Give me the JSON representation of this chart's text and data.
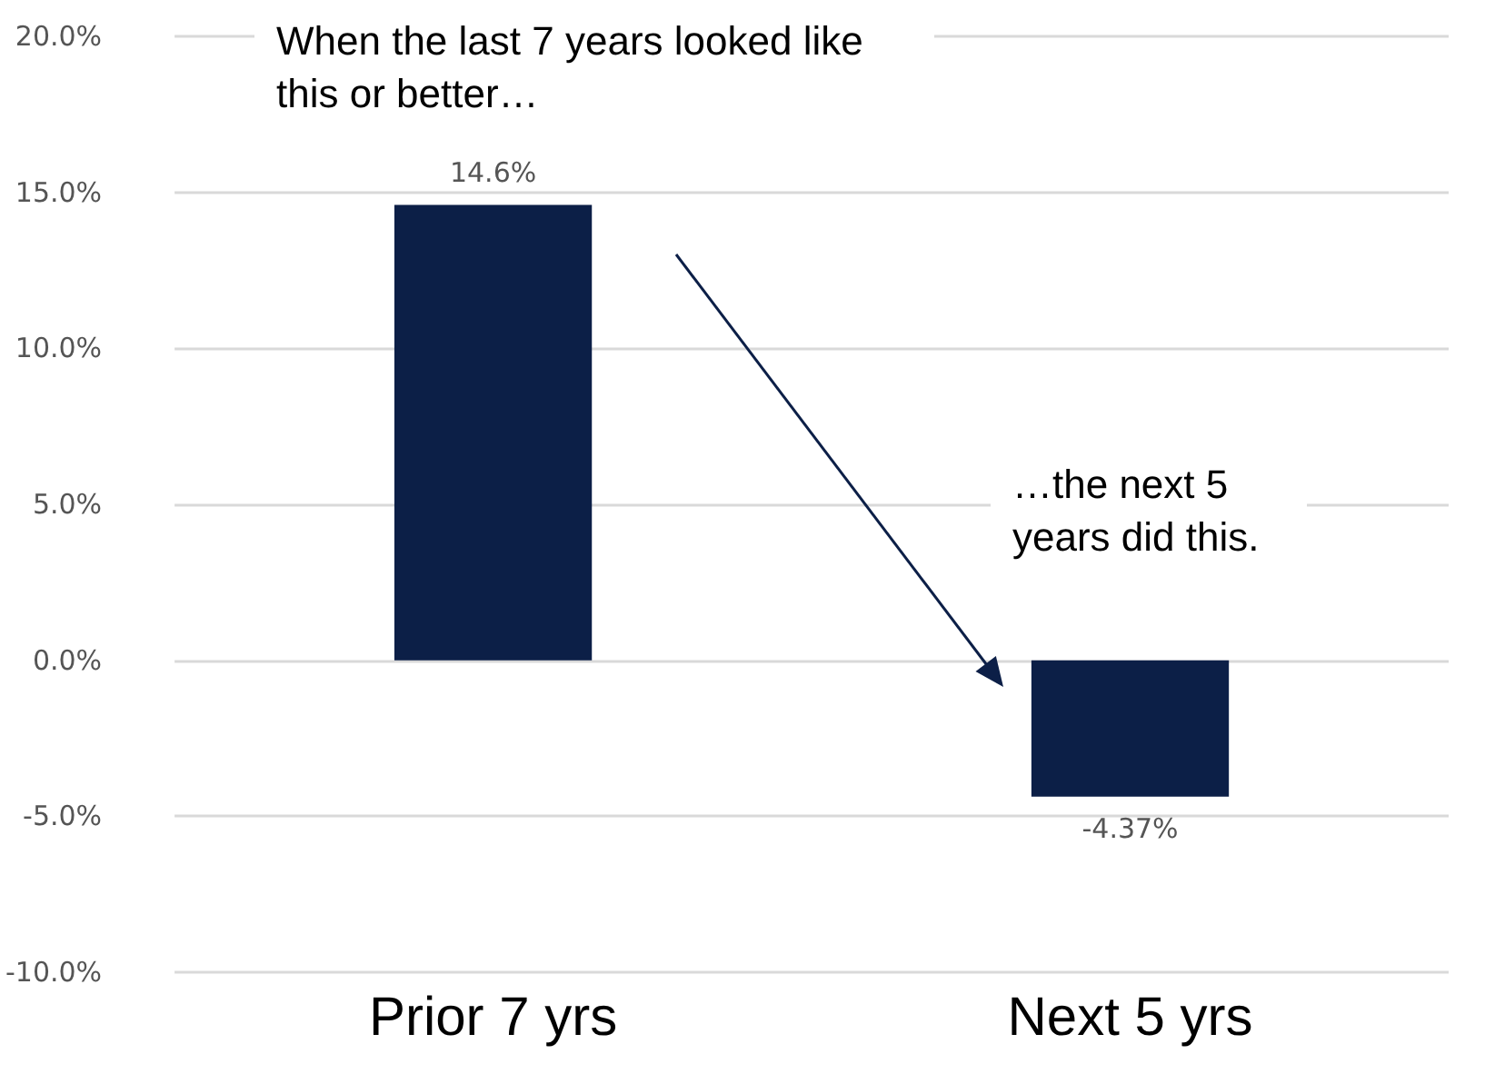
{
  "chart_data": {
    "type": "bar",
    "categories": [
      "Prior 7 yrs",
      "Next 5 yrs"
    ],
    "values": [
      14.6,
      -4.37
    ],
    "value_labels": [
      "14.6%",
      "-4.37%"
    ],
    "color": "#0c1f47",
    "ylim": [
      -10,
      20
    ],
    "yticks": [
      {
        "value": -10,
        "label": "-10.0%"
      },
      {
        "value": -5,
        "label": "-5.0%"
      },
      {
        "value": 0,
        "label": "0.0%"
      },
      {
        "value": 5,
        "label": "5.0%"
      },
      {
        "value": 10,
        "label": "10.0%"
      },
      {
        "value": 15,
        "label": "15.0%"
      },
      {
        "value": 20,
        "label": "20.0%"
      }
    ],
    "grid": "y",
    "annotations": [
      "When the last 7 years looked like this or better…",
      "…the next 5 years did this."
    ]
  }
}
